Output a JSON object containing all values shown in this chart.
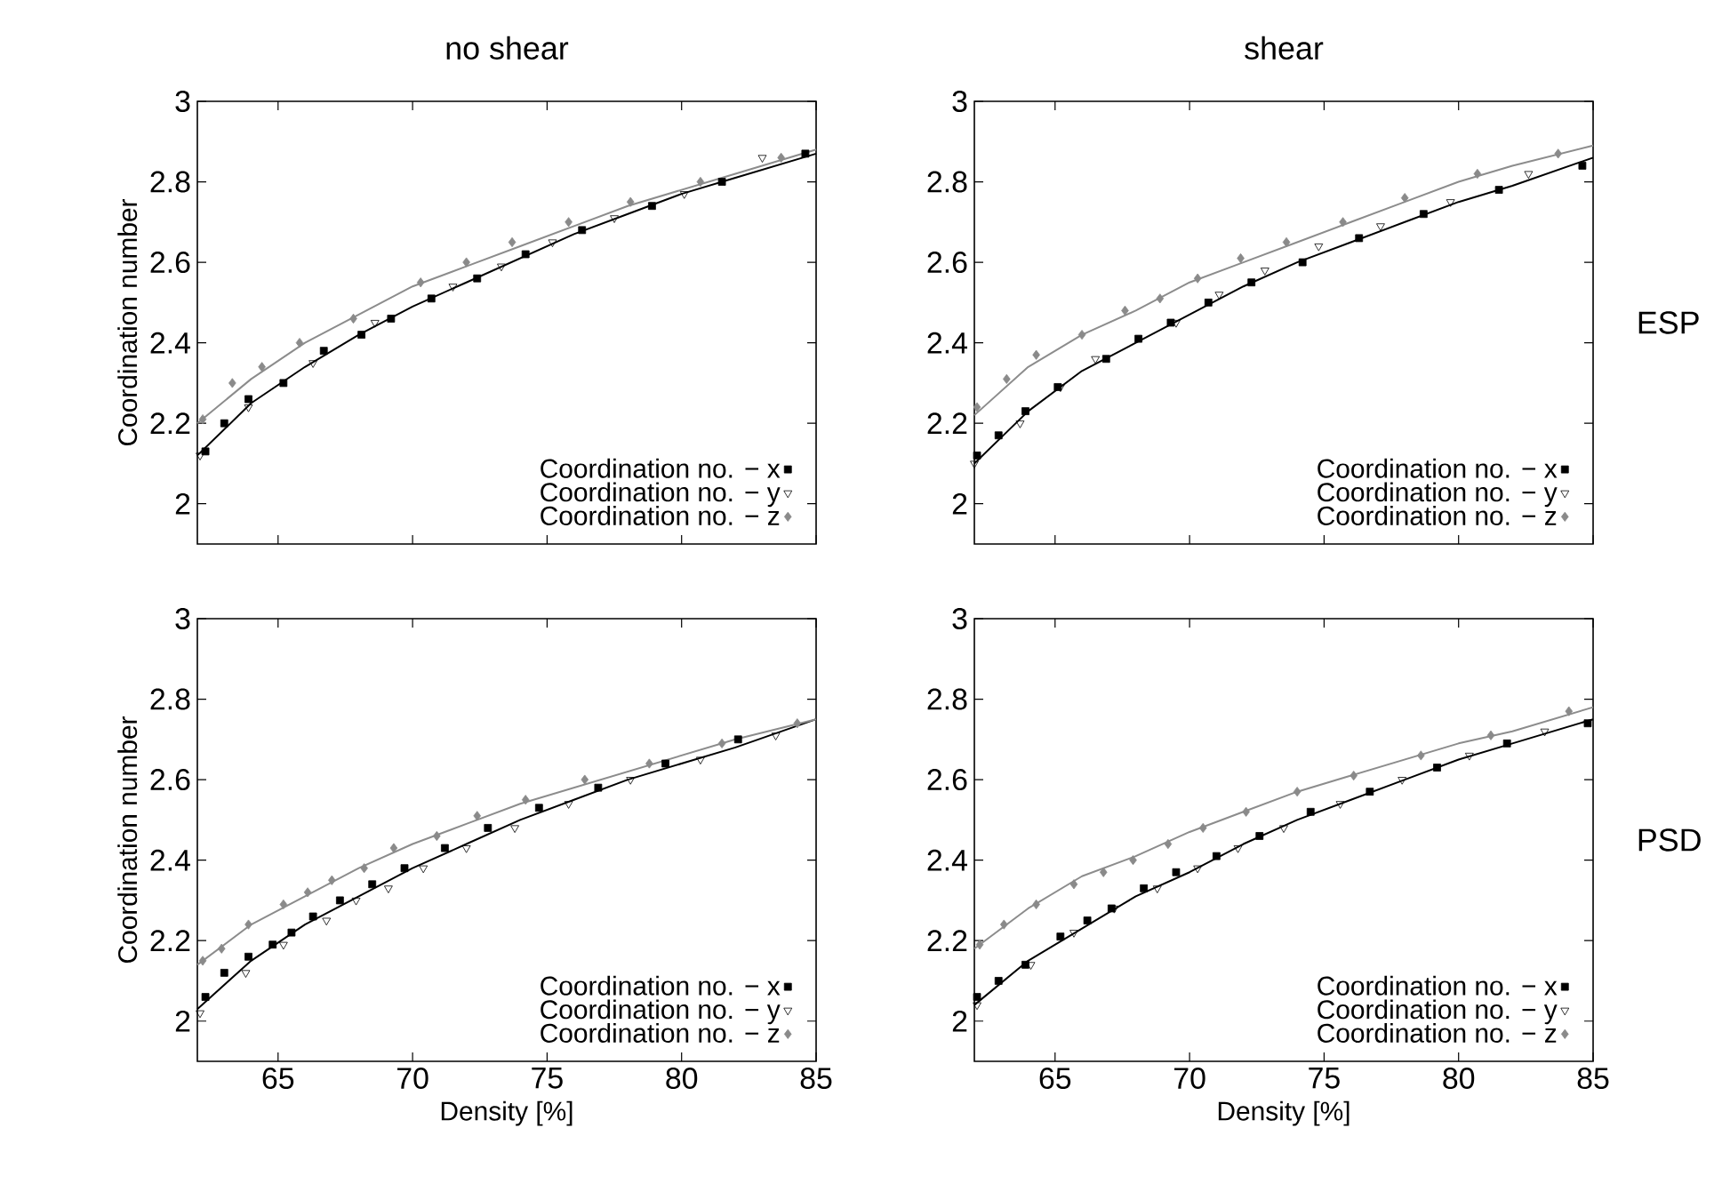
{
  "chart_data": [
    {
      "type": "scatter",
      "title": "no shear",
      "ylabel": "Coordination number",
      "xlim": [
        62,
        85
      ],
      "ylim": [
        1.9,
        3
      ],
      "xticks": [
        65,
        70,
        75,
        80,
        85
      ],
      "yticks": [
        2,
        2.2,
        2.4,
        2.6,
        2.8,
        3
      ],
      "tick_labels": "y",
      "legend": "bottom right",
      "series": [
        {
          "name": "Coordination no. − x",
          "color": "#000000",
          "marker": "square",
          "x": [
            62.3,
            63.0,
            63.9,
            65.2,
            66.7,
            68.1,
            69.2,
            70.7,
            72.4,
            74.2,
            76.3,
            78.9,
            81.5,
            84.6
          ],
          "values": [
            2.13,
            2.2,
            2.26,
            2.3,
            2.38,
            2.42,
            2.46,
            2.51,
            2.56,
            2.62,
            2.68,
            2.74,
            2.8,
            2.87
          ]
        },
        {
          "name": "Coordination no. − y",
          "color": "#000000",
          "marker": "triangle",
          "x": [
            62.1,
            63.9,
            66.3,
            68.6,
            71.5,
            73.3,
            75.2,
            77.5,
            80.1,
            83.0
          ],
          "values": [
            2.12,
            2.24,
            2.35,
            2.45,
            2.54,
            2.59,
            2.65,
            2.71,
            2.77,
            2.86
          ]
        },
        {
          "name": "Coordination no. − z",
          "color": "#8a8a8a",
          "marker": "diamond",
          "x": [
            62.2,
            63.3,
            64.4,
            65.8,
            67.8,
            70.3,
            72.0,
            73.7,
            75.8,
            78.1,
            80.7,
            83.7
          ],
          "values": [
            2.21,
            2.3,
            2.34,
            2.4,
            2.46,
            2.55,
            2.6,
            2.65,
            2.7,
            2.75,
            2.8,
            2.86
          ]
        },
        {
          "type": "line",
          "color": "#000000",
          "x": [
            62,
            64,
            66,
            68,
            70,
            72,
            74,
            76,
            78,
            80,
            82,
            85
          ],
          "values": [
            2.12,
            2.25,
            2.34,
            2.42,
            2.49,
            2.55,
            2.61,
            2.67,
            2.72,
            2.77,
            2.81,
            2.87
          ]
        },
        {
          "type": "line",
          "color": "#8c8c8c",
          "x": [
            62,
            64,
            66,
            68,
            70,
            72,
            74,
            76,
            78,
            80,
            82,
            85
          ],
          "values": [
            2.2,
            2.31,
            2.4,
            2.47,
            2.54,
            2.59,
            2.64,
            2.69,
            2.74,
            2.78,
            2.82,
            2.88
          ]
        }
      ]
    },
    {
      "type": "scatter",
      "title": "shear",
      "annotations": [
        "ESP"
      ],
      "xlim": [
        62,
        85
      ],
      "ylim": [
        1.9,
        3
      ],
      "xticks": [
        65,
        70,
        75,
        80,
        85
      ],
      "yticks": [
        2,
        2.2,
        2.4,
        2.6,
        2.8,
        3
      ],
      "tick_labels": "y",
      "legend": "bottom right",
      "series": [
        {
          "name": "Coordination no. − x",
          "color": "#000000",
          "marker": "square",
          "x": [
            62.1,
            62.9,
            63.9,
            65.1,
            66.9,
            68.1,
            69.3,
            70.7,
            72.3,
            74.2,
            76.3,
            78.7,
            81.5,
            84.6
          ],
          "values": [
            2.12,
            2.17,
            2.23,
            2.29,
            2.36,
            2.41,
            2.45,
            2.5,
            2.55,
            2.6,
            2.66,
            2.72,
            2.78,
            2.84
          ]
        },
        {
          "name": "Coordination no. − y",
          "color": "#000000",
          "marker": "triangle",
          "x": [
            62.0,
            63.7,
            65.2,
            66.5,
            69.5,
            71.1,
            72.8,
            74.8,
            77.1,
            79.7,
            82.6
          ],
          "values": [
            2.1,
            2.2,
            2.29,
            2.36,
            2.45,
            2.52,
            2.58,
            2.64,
            2.69,
            2.75,
            2.82
          ]
        },
        {
          "name": "Coordination no. − z",
          "color": "#8a8a8a",
          "marker": "diamond",
          "x": [
            62.1,
            63.2,
            64.3,
            66.0,
            67.6,
            68.9,
            70.3,
            71.9,
            73.6,
            75.7,
            78.0,
            80.7,
            83.7
          ],
          "values": [
            2.24,
            2.31,
            2.37,
            2.42,
            2.48,
            2.51,
            2.56,
            2.61,
            2.65,
            2.7,
            2.76,
            2.82,
            2.87
          ]
        },
        {
          "type": "line",
          "color": "#000000",
          "x": [
            62,
            64,
            66,
            68,
            70,
            72,
            74,
            76,
            78,
            80,
            82,
            85
          ],
          "values": [
            2.1,
            2.23,
            2.33,
            2.4,
            2.47,
            2.54,
            2.6,
            2.65,
            2.7,
            2.75,
            2.79,
            2.86
          ]
        },
        {
          "type": "line",
          "color": "#8c8c8c",
          "x": [
            62,
            64,
            66,
            68,
            70,
            72,
            74,
            76,
            78,
            80,
            82,
            85
          ],
          "values": [
            2.22,
            2.34,
            2.42,
            2.48,
            2.55,
            2.6,
            2.65,
            2.7,
            2.75,
            2.8,
            2.84,
            2.89
          ]
        }
      ]
    },
    {
      "type": "scatter",
      "xlabel": "Density [%]",
      "ylabel": "Coordination number",
      "xlim": [
        62,
        85
      ],
      "ylim": [
        1.9,
        3
      ],
      "xticks": [
        65,
        70,
        75,
        80,
        85
      ],
      "yticks": [
        2,
        2.2,
        2.4,
        2.6,
        2.8,
        3
      ],
      "legend": "bottom right",
      "series": [
        {
          "name": "Coordination no. − x",
          "color": "#000000",
          "marker": "square",
          "x": [
            62.3,
            63.0,
            63.9,
            64.8,
            65.5,
            66.3,
            67.3,
            68.5,
            69.7,
            71.2,
            72.8,
            74.7,
            76.9,
            79.4,
            82.1
          ],
          "values": [
            2.06,
            2.12,
            2.16,
            2.19,
            2.22,
            2.26,
            2.3,
            2.34,
            2.38,
            2.43,
            2.48,
            2.53,
            2.58,
            2.64,
            2.7
          ]
        },
        {
          "name": "Coordination no. − y",
          "color": "#000000",
          "marker": "triangle",
          "x": [
            62.1,
            63.8,
            65.2,
            66.8,
            67.9,
            69.1,
            70.4,
            72.0,
            73.8,
            75.8,
            78.1,
            80.7,
            83.5
          ],
          "values": [
            2.02,
            2.12,
            2.19,
            2.25,
            2.3,
            2.33,
            2.38,
            2.43,
            2.48,
            2.54,
            2.6,
            2.65,
            2.71
          ]
        },
        {
          "name": "Coordination no. − z",
          "color": "#8a8a8a",
          "marker": "diamond",
          "x": [
            62.2,
            62.9,
            63.9,
            65.2,
            66.1,
            67.0,
            68.2,
            69.3,
            70.9,
            72.4,
            74.2,
            76.4,
            78.8,
            81.5,
            84.3
          ],
          "values": [
            2.15,
            2.18,
            2.24,
            2.29,
            2.32,
            2.35,
            2.38,
            2.43,
            2.46,
            2.51,
            2.55,
            2.6,
            2.64,
            2.69,
            2.74
          ]
        },
        {
          "type": "line",
          "color": "#000000",
          "x": [
            62,
            64,
            66,
            68,
            70,
            72,
            74,
            76,
            78,
            80,
            82,
            85
          ],
          "values": [
            2.03,
            2.15,
            2.24,
            2.31,
            2.38,
            2.44,
            2.5,
            2.55,
            2.6,
            2.64,
            2.68,
            2.75
          ]
        },
        {
          "type": "line",
          "color": "#8c8c8c",
          "x": [
            62,
            64,
            66,
            68,
            70,
            72,
            74,
            76,
            78,
            80,
            82,
            85
          ],
          "values": [
            2.14,
            2.24,
            2.31,
            2.38,
            2.44,
            2.49,
            2.54,
            2.58,
            2.62,
            2.66,
            2.7,
            2.75
          ]
        }
      ]
    },
    {
      "type": "scatter",
      "xlabel": "Density [%]",
      "annotations": [
        "PSD"
      ],
      "xlim": [
        62,
        85
      ],
      "ylim": [
        1.9,
        3
      ],
      "xticks": [
        65,
        70,
        75,
        80,
        85
      ],
      "yticks": [
        2,
        2.2,
        2.4,
        2.6,
        2.8,
        3
      ],
      "legend": "bottom right",
      "series": [
        {
          "name": "Coordination no. − x",
          "color": "#000000",
          "marker": "square",
          "x": [
            62.1,
            62.9,
            63.9,
            65.2,
            66.2,
            67.1,
            68.3,
            69.5,
            71.0,
            72.6,
            74.5,
            76.7,
            79.2,
            81.8,
            84.8
          ],
          "values": [
            2.06,
            2.1,
            2.14,
            2.21,
            2.25,
            2.28,
            2.33,
            2.37,
            2.41,
            2.46,
            2.52,
            2.57,
            2.63,
            2.69,
            2.74
          ]
        },
        {
          "name": "Coordination no. − y",
          "color": "#000000",
          "marker": "triangle",
          "x": [
            62.1,
            64.1,
            65.7,
            67.2,
            68.8,
            70.3,
            71.8,
            73.5,
            75.6,
            77.9,
            80.4,
            83.2
          ],
          "values": [
            2.04,
            2.14,
            2.22,
            2.28,
            2.33,
            2.38,
            2.43,
            2.48,
            2.54,
            2.6,
            2.66,
            2.72
          ]
        },
        {
          "name": "Coordination no. − z",
          "color": "#8a8a8a",
          "marker": "diamond",
          "x": [
            62.2,
            63.1,
            64.3,
            65.7,
            66.8,
            67.9,
            69.2,
            70.5,
            72.1,
            74.0,
            76.1,
            78.6,
            81.2,
            84.1
          ],
          "values": [
            2.19,
            2.24,
            2.29,
            2.34,
            2.37,
            2.4,
            2.44,
            2.48,
            2.52,
            2.57,
            2.61,
            2.66,
            2.71,
            2.77
          ]
        },
        {
          "type": "line",
          "color": "#000000",
          "x": [
            62,
            64,
            66,
            68,
            70,
            72,
            74,
            76,
            78,
            80,
            82,
            85
          ],
          "values": [
            2.04,
            2.15,
            2.23,
            2.31,
            2.37,
            2.44,
            2.5,
            2.55,
            2.6,
            2.65,
            2.69,
            2.75
          ]
        },
        {
          "type": "line",
          "color": "#8c8c8c",
          "x": [
            62,
            64,
            66,
            68,
            70,
            72,
            74,
            76,
            78,
            80,
            82,
            85
          ],
          "values": [
            2.18,
            2.28,
            2.36,
            2.41,
            2.47,
            2.52,
            2.57,
            2.61,
            2.65,
            2.69,
            2.72,
            2.78
          ]
        }
      ]
    }
  ]
}
